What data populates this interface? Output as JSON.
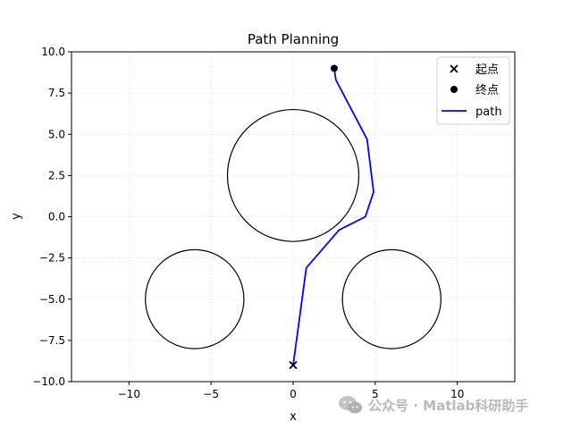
{
  "chart_data": {
    "type": "line",
    "title": "Path Planning",
    "xlabel": "x",
    "ylabel": "y",
    "xlim": [
      -13.5,
      13.5
    ],
    "ylim": [
      -10,
      10
    ],
    "xticks": [
      -10,
      -5,
      0,
      5,
      10
    ],
    "yticks": [
      -10.0,
      -7.5,
      -5.0,
      -2.5,
      0.0,
      2.5,
      5.0,
      7.5,
      10.0
    ],
    "xtick_labels": [
      "−10",
      "−5",
      "0",
      "5",
      "10"
    ],
    "ytick_labels": [
      "−10.0",
      "−7.5",
      "−5.0",
      "−2.5",
      "0.0",
      "2.5",
      "5.0",
      "7.5",
      "10.0"
    ],
    "grid": true,
    "legend_position": "top-right",
    "obstacles": [
      {
        "cx": 0,
        "cy": 2.5,
        "r": 4
      },
      {
        "cx": -6,
        "cy": -5,
        "r": 3
      },
      {
        "cx": 6,
        "cy": -5,
        "r": 3
      }
    ],
    "start": {
      "label": "起点",
      "x": 0,
      "y": -9
    },
    "goal": {
      "label": "终点",
      "x": 2.5,
      "y": 9
    },
    "path": {
      "label": "path",
      "color": "#0000ff",
      "x": [
        0,
        0.8,
        2.8,
        4.4,
        4.9,
        4.5,
        2.6,
        2.5
      ],
      "y": [
        -9,
        -3.1,
        -0.8,
        0.0,
        1.5,
        4.7,
        8.3,
        9.0
      ]
    }
  },
  "watermark": {
    "text": "公众号 · Matlab科研助手",
    "icon": "wechat-icon"
  }
}
